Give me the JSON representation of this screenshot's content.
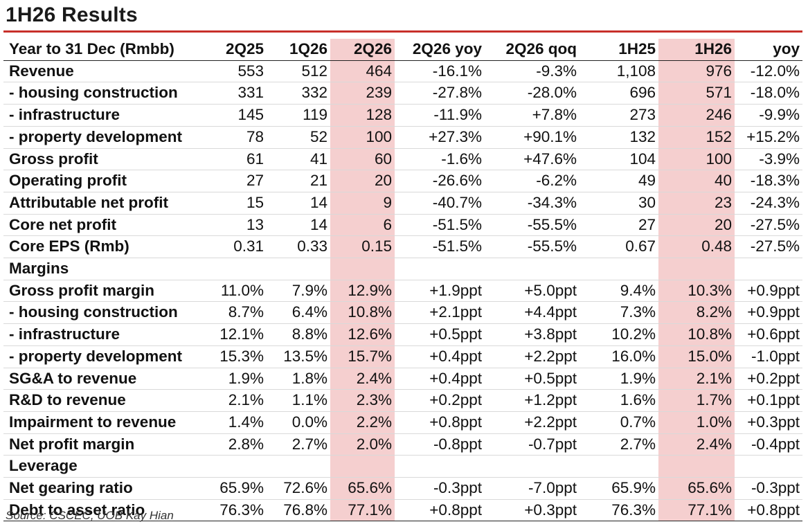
{
  "title": "1H26 Results",
  "table": {
    "headers": [
      "Year to 31 Dec (Rmbb)",
      "2Q25",
      "1Q26",
      "2Q26",
      "2Q26 yoy",
      "2Q26 qoq",
      "1H25",
      "1H26",
      "yoy"
    ],
    "highlight_color": "#f5cfcf",
    "rows": [
      {
        "label": "Revenue",
        "values": [
          "553",
          "512",
          "464",
          "-16.1%",
          "-9.3%",
          "1,108",
          "976",
          "-12.0%"
        ]
      },
      {
        "label": "- housing construction",
        "values": [
          "331",
          "332",
          "239",
          "-27.8%",
          "-28.0%",
          "696",
          "571",
          "-18.0%"
        ]
      },
      {
        "label": "- infrastructure",
        "values": [
          "145",
          "119",
          "128",
          "-11.9%",
          "+7.8%",
          "273",
          "246",
          "-9.9%"
        ]
      },
      {
        "label": "- property development",
        "values": [
          "78",
          "52",
          "100",
          "+27.3%",
          "+90.1%",
          "132",
          "152",
          "+15.2%"
        ]
      },
      {
        "label": "Gross profit",
        "values": [
          "61",
          "41",
          "60",
          "-1.6%",
          "+47.6%",
          "104",
          "100",
          "-3.9%"
        ]
      },
      {
        "label": "Operating profit",
        "values": [
          "27",
          "21",
          "20",
          "-26.6%",
          "-6.2%",
          "49",
          "40",
          "-18.3%"
        ]
      },
      {
        "label": "Attributable net profit",
        "values": [
          "15",
          "14",
          "9",
          "-40.7%",
          "-34.3%",
          "30",
          "23",
          "-24.3%"
        ]
      },
      {
        "label": "Core net profit",
        "values": [
          "13",
          "14",
          "6",
          "-51.5%",
          "-55.5%",
          "27",
          "20",
          "-27.5%"
        ]
      },
      {
        "label": "Core EPS (Rmb)",
        "values": [
          "0.31",
          "0.33",
          "0.15",
          "-51.5%",
          "-55.5%",
          "0.67",
          "0.48",
          "-27.5%"
        ]
      },
      {
        "label": "Margins",
        "values": [
          "",
          "",
          "",
          "",
          "",
          "",
          "",
          ""
        ]
      },
      {
        "label": "Gross profit margin",
        "values": [
          "11.0%",
          "7.9%",
          "12.9%",
          "+1.9ppt",
          "+5.0ppt",
          "9.4%",
          "10.3%",
          "+0.9ppt"
        ]
      },
      {
        "label": "- housing construction",
        "values": [
          "8.7%",
          "6.4%",
          "10.8%",
          "+2.1ppt",
          "+4.4ppt",
          "7.3%",
          "8.2%",
          "+0.9ppt"
        ]
      },
      {
        "label": "- infrastructure",
        "values": [
          "12.1%",
          "8.8%",
          "12.6%",
          "+0.5ppt",
          "+3.8ppt",
          "10.2%",
          "10.8%",
          "+0.6ppt"
        ]
      },
      {
        "label": "- property development",
        "values": [
          "15.3%",
          "13.5%",
          "15.7%",
          "+0.4ppt",
          "+2.2ppt",
          "16.0%",
          "15.0%",
          "-1.0ppt"
        ]
      },
      {
        "label": "SG&A to revenue",
        "values": [
          "1.9%",
          "1.8%",
          "2.4%",
          "+0.4ppt",
          "+0.5ppt",
          "1.9%",
          "2.1%",
          "+0.2ppt"
        ]
      },
      {
        "label": "R&D to revenue",
        "values": [
          "2.1%",
          "1.1%",
          "2.3%",
          "+0.2ppt",
          "+1.2ppt",
          "1.6%",
          "1.7%",
          "+0.1ppt"
        ]
      },
      {
        "label": "Impairment to revenue",
        "values": [
          "1.4%",
          "0.0%",
          "2.2%",
          "+0.8ppt",
          "+2.2ppt",
          "0.7%",
          "1.0%",
          "+0.3ppt"
        ]
      },
      {
        "label": "Net profit margin",
        "values": [
          "2.8%",
          "2.7%",
          "2.0%",
          "-0.8ppt",
          "-0.7ppt",
          "2.7%",
          "2.4%",
          "-0.4ppt"
        ]
      },
      {
        "label": "Leverage",
        "values": [
          "",
          "",
          "",
          "",
          "",
          "",
          "",
          ""
        ]
      },
      {
        "label": "Net gearing ratio",
        "values": [
          "65.9%",
          "72.6%",
          "65.6%",
          "-0.3ppt",
          "-7.0ppt",
          "65.9%",
          "65.6%",
          "-0.3ppt"
        ]
      },
      {
        "label": "Debt to asset ratio",
        "values": [
          "76.3%",
          "76.8%",
          "77.1%",
          "+0.8ppt",
          "+0.3ppt",
          "76.3%",
          "77.1%",
          "+0.8ppt"
        ]
      }
    ]
  },
  "source": "Source: CSCEC, UOB Kay Hian"
}
